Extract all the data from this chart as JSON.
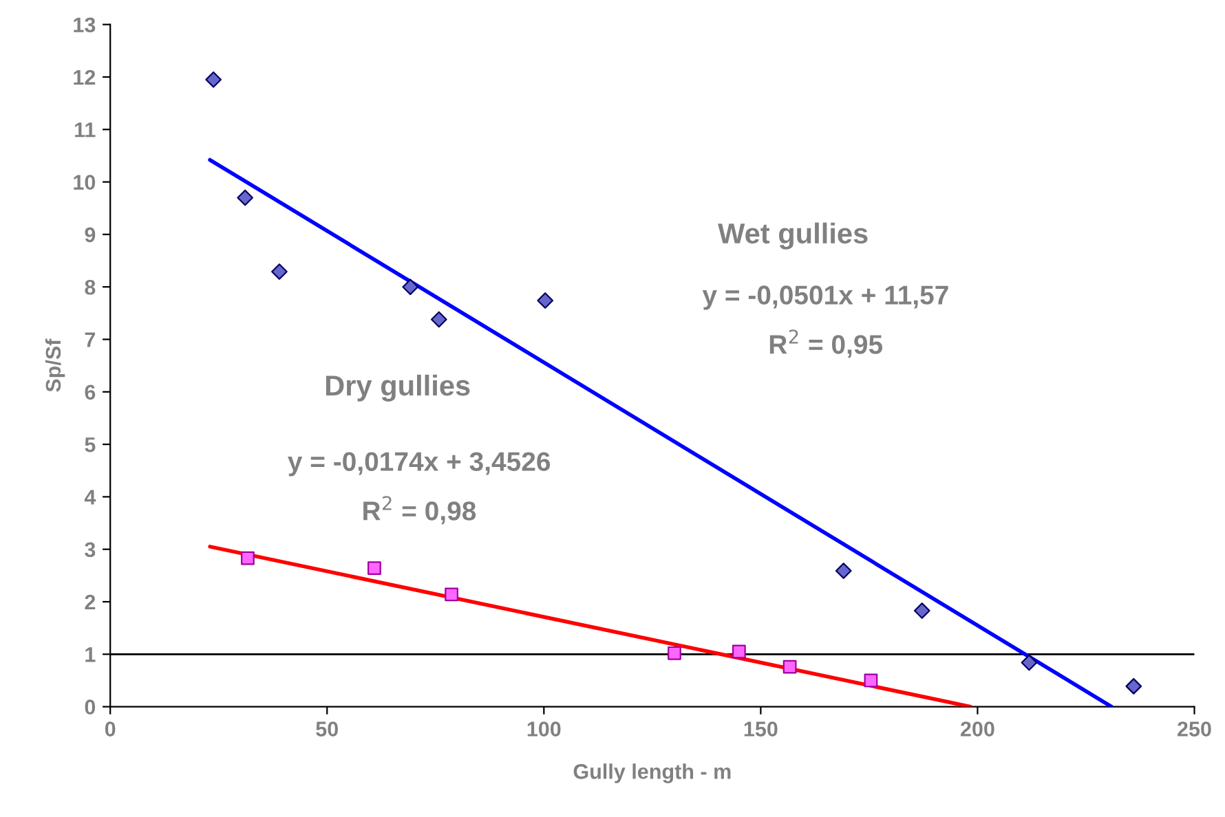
{
  "chart_data": {
    "type": "scatter",
    "xlabel": "Gully length - m",
    "ylabel": "Sp/Sf",
    "xlim": [
      0,
      250
    ],
    "xticks": [
      0,
      50,
      100,
      150,
      200,
      250
    ],
    "ylim": [
      0,
      13
    ],
    "yticks": [
      0,
      1,
      2,
      3,
      4,
      5,
      6,
      7,
      8,
      9,
      10,
      11,
      12,
      13
    ],
    "grid": false,
    "legend": false,
    "series": [
      {
        "marker": "diamond",
        "color": "#6666cc",
        "x": [
          23.8,
          31.1,
          39.0,
          69.2,
          75.8,
          100.3,
          169.1,
          187.2,
          211.9,
          236.0
        ],
        "values": [
          11.95,
          9.7,
          8.29,
          8.0,
          7.38,
          7.74,
          2.59,
          1.83,
          0.84,
          0.39
        ]
      },
      {
        "marker": "square",
        "color": "#ff66ff",
        "x": [
          31.7,
          60.9,
          78.7,
          130.1,
          145.0,
          156.7,
          175.4
        ],
        "values": [
          2.83,
          2.64,
          2.14,
          1.02,
          1.05,
          0.76,
          0.5
        ]
      },
      {
        "type": "line",
        "marker": "none",
        "line_style": "solid",
        "color": "#0000ff",
        "x": [
          23.0,
          230.9
        ],
        "values": [
          10.42,
          0.0
        ]
      },
      {
        "type": "line",
        "marker": "none",
        "line_style": "solid",
        "color": "#ff0000",
        "x": [
          23.0,
          198.4
        ],
        "values": [
          3.05,
          0.0
        ]
      }
    ],
    "ref_lines": [
      {
        "axis": "y",
        "value": 1,
        "label": null,
        "color": "#000000",
        "line_style": "solid"
      }
    ],
    "annotations": [
      "Wet gullies",
      "y = -0,0501x + 11,57",
      "R$^{2}$ = 0,95",
      "Dry gullies",
      "y = -0,0174x + 3,4526",
      "R$^{2}$ = 0,98"
    ]
  }
}
